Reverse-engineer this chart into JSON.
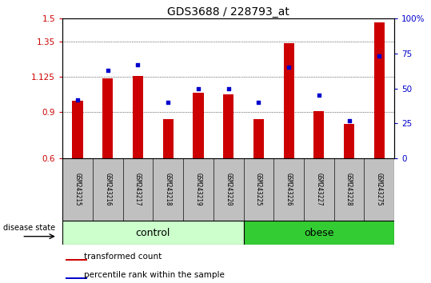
{
  "title": "GDS3688 / 228793_at",
  "samples": [
    "GSM243215",
    "GSM243216",
    "GSM243217",
    "GSM243218",
    "GSM243219",
    "GSM243220",
    "GSM243225",
    "GSM243226",
    "GSM243227",
    "GSM243228",
    "GSM243275"
  ],
  "bar_values": [
    0.97,
    1.115,
    1.13,
    0.855,
    1.02,
    1.01,
    0.855,
    1.34,
    0.905,
    0.82,
    1.475
  ],
  "scatter_values": [
    42,
    63,
    67,
    40,
    50,
    50,
    40,
    65,
    45,
    27,
    73
  ],
  "ylim_left": [
    0.6,
    1.5
  ],
  "ylim_right": [
    0,
    100
  ],
  "yticks_left": [
    0.6,
    0.9,
    1.125,
    1.35,
    1.5
  ],
  "ytick_labels_left": [
    "0.6",
    "0.9",
    "1.125",
    "1.35",
    "1.5"
  ],
  "yticks_right": [
    0,
    25,
    50,
    75,
    100
  ],
  "ytick_labels_right": [
    "0",
    "25",
    "50",
    "75",
    "100%"
  ],
  "bar_color": "#cc0000",
  "scatter_color": "#0000cc",
  "n_control": 6,
  "n_obese": 5,
  "control_label": "control",
  "obese_label": "obese",
  "group_label": "disease state",
  "legend_bar_label": "transformed count",
  "legend_scatter_label": "percentile rank within the sample",
  "control_color": "#ccffcc",
  "obese_color": "#33cc33",
  "bg_color": "#ffffff",
  "tick_bg": "#c0c0c0"
}
